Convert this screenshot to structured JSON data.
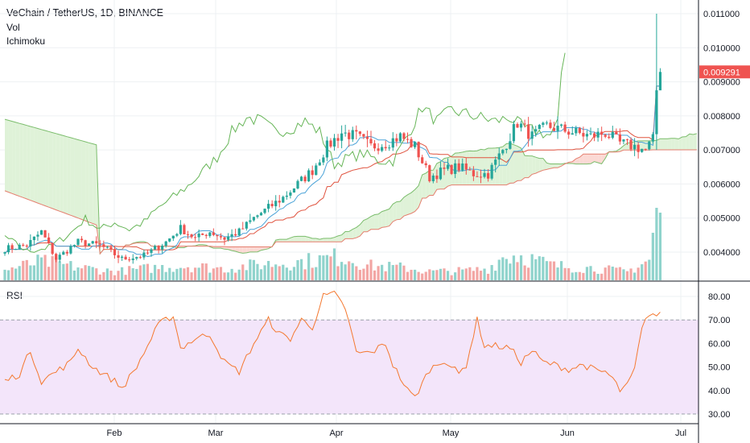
{
  "header": {
    "title": "VeChain / TetherUS, 1D, BINANCE",
    "indicators": [
      "Vol",
      "Ichimoku"
    ],
    "rsi_label": "RSI"
  },
  "colors": {
    "up": "#26a69a",
    "down": "#ef5350",
    "vol_up": "#8fd3cc",
    "vol_down": "#f3a6a4",
    "tenkan": "#4ba3d8",
    "kijun": "#e0533f",
    "chikou": "#66b557",
    "cloud_bull": "#dff2d8",
    "cloud_bear": "#fbd9d4",
    "rsi_line": "#f4782f",
    "rsi_band": "#f3e5fa",
    "last_price": "#ef5350"
  },
  "chart_data": [
    {
      "type": "candlestick",
      "title": "VeChain / TetherUS, 1D, BINANCE",
      "y_ticks": [
        "0.011000",
        "0.010000",
        "0.009000",
        "0.008000",
        "0.007000",
        "0.006000",
        "0.005000",
        "0.004000"
      ],
      "ylim": [
        0.0032,
        0.0112
      ],
      "x_ticks": [
        "Feb",
        "Mar",
        "Apr",
        "May",
        "Jun",
        "Jul"
      ],
      "last_price": "0.009291",
      "grid": true,
      "price_anchors": [
        [
          0,
          0.0041
        ],
        [
          6,
          0.0042
        ],
        [
          10,
          0.0046
        ],
        [
          14,
          0.0038
        ],
        [
          20,
          0.0043
        ],
        [
          26,
          0.0042
        ],
        [
          32,
          0.0038
        ],
        [
          38,
          0.0039
        ],
        [
          44,
          0.0043
        ],
        [
          48,
          0.0047
        ],
        [
          52,
          0.0044
        ],
        [
          56,
          0.0046
        ],
        [
          60,
          0.0044
        ],
        [
          64,
          0.0046
        ],
        [
          68,
          0.005
        ],
        [
          72,
          0.0053
        ],
        [
          76,
          0.0056
        ],
        [
          80,
          0.006
        ],
        [
          84,
          0.0064
        ],
        [
          88,
          0.0071
        ],
        [
          92,
          0.0075
        ],
        [
          96,
          0.0074
        ],
        [
          100,
          0.0071
        ],
        [
          104,
          0.0072
        ],
        [
          108,
          0.0074
        ],
        [
          112,
          0.0071
        ],
        [
          116,
          0.0062
        ],
        [
          120,
          0.0064
        ],
        [
          124,
          0.0065
        ],
        [
          128,
          0.0063
        ],
        [
          132,
          0.0063
        ],
        [
          136,
          0.007
        ],
        [
          140,
          0.0078
        ],
        [
          144,
          0.0074
        ],
        [
          148,
          0.0077
        ],
        [
          152,
          0.0076
        ],
        [
          156,
          0.0075
        ],
        [
          160,
          0.0074
        ],
        [
          164,
          0.0075
        ],
        [
          168,
          0.0072
        ],
        [
          172,
          0.0071
        ],
        [
          175,
          0.007
        ],
        [
          177,
          0.0073
        ],
        [
          178,
          0.0093
        ],
        [
          179,
          0.0093
        ]
      ],
      "volume_anchors": [
        [
          0,
          0.14
        ],
        [
          10,
          0.26
        ],
        [
          20,
          0.18
        ],
        [
          30,
          0.12
        ],
        [
          40,
          0.17
        ],
        [
          50,
          0.2
        ],
        [
          60,
          0.16
        ],
        [
          70,
          0.22
        ],
        [
          80,
          0.25
        ],
        [
          88,
          0.3
        ],
        [
          92,
          0.33
        ],
        [
          100,
          0.2
        ],
        [
          110,
          0.17
        ],
        [
          116,
          0.12
        ],
        [
          125,
          0.13
        ],
        [
          132,
          0.16
        ],
        [
          136,
          0.32
        ],
        [
          140,
          0.35
        ],
        [
          150,
          0.2
        ],
        [
          160,
          0.17
        ],
        [
          170,
          0.12
        ],
        [
          176,
          0.28
        ],
        [
          178,
          0.93
        ]
      ],
      "rsi": {
        "label": "RSI",
        "y_ticks": [
          "80.00",
          "70.00",
          "60.00",
          "50.00",
          "40.00",
          "30.00"
        ],
        "ylim": [
          26,
          86
        ],
        "band": [
          30,
          70
        ],
        "anchors": [
          [
            0,
            44
          ],
          [
            4,
            47
          ],
          [
            7,
            57
          ],
          [
            10,
            44
          ],
          [
            14,
            48
          ],
          [
            18,
            52
          ],
          [
            20,
            58
          ],
          [
            24,
            50
          ],
          [
            26,
            48
          ],
          [
            30,
            44
          ],
          [
            32,
            41
          ],
          [
            36,
            50
          ],
          [
            38,
            56
          ],
          [
            42,
            68
          ],
          [
            46,
            72
          ],
          [
            48,
            58
          ],
          [
            52,
            62
          ],
          [
            56,
            64
          ],
          [
            60,
            52
          ],
          [
            64,
            48
          ],
          [
            68,
            60
          ],
          [
            72,
            70
          ],
          [
            75,
            64
          ],
          [
            78,
            62
          ],
          [
            81,
            70
          ],
          [
            84,
            67
          ],
          [
            87,
            80
          ],
          [
            90,
            81
          ],
          [
            93,
            75
          ],
          [
            96,
            56
          ],
          [
            100,
            56
          ],
          [
            104,
            60
          ],
          [
            106,
            51
          ],
          [
            110,
            40
          ],
          [
            112,
            37
          ],
          [
            116,
            49
          ],
          [
            120,
            53
          ],
          [
            124,
            47
          ],
          [
            126,
            51
          ],
          [
            129,
            70
          ],
          [
            131,
            59
          ],
          [
            134,
            59
          ],
          [
            138,
            58
          ],
          [
            141,
            52
          ],
          [
            144,
            57
          ],
          [
            147,
            52
          ],
          [
            150,
            51
          ],
          [
            154,
            49
          ],
          [
            158,
            51
          ],
          [
            162,
            48
          ],
          [
            164,
            48
          ],
          [
            166,
            45
          ],
          [
            168,
            40
          ],
          [
            170,
            42
          ],
          [
            172,
            49
          ],
          [
            174,
            66
          ],
          [
            176,
            73
          ],
          [
            178,
            72
          ]
        ]
      }
    }
  ]
}
